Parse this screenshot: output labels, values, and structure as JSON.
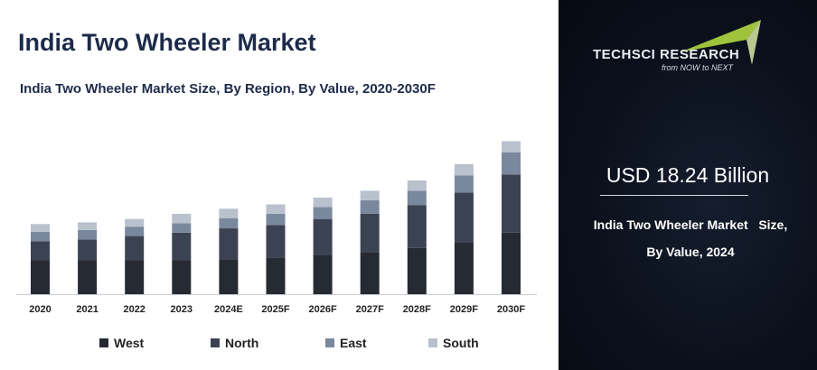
{
  "title": "India Two Wheeler Market",
  "subtitle": "India Two Wheeler Market Size, By Region, By Value, 2020-2030F",
  "chart_data": {
    "type": "bar",
    "stacked": true,
    "title": "India Two Wheeler Market Size, By Region, By Value, 2020-2030F",
    "xlabel": "",
    "ylabel": "",
    "categories": [
      "2020",
      "2021",
      "2022",
      "2023",
      "2024E",
      "2025F",
      "2026F",
      "2027F",
      "2028F",
      "2029F",
      "2030F"
    ],
    "series": [
      {
        "name": "West",
        "color": "#262a33",
        "values": [
          40,
          40,
          40,
          40,
          41,
          43,
          46,
          49,
          54,
          61,
          72
        ]
      },
      {
        "name": "North",
        "color": "#3b4353",
        "values": [
          22,
          24,
          28,
          32,
          36,
          38,
          42,
          45,
          50,
          58,
          68
        ]
      },
      {
        "name": "East",
        "color": "#7a889e",
        "values": [
          11,
          11,
          11,
          11,
          12,
          13,
          14,
          16,
          17,
          20,
          26
        ]
      },
      {
        "name": "South",
        "color": "#b9c1cd",
        "values": [
          9,
          9,
          9,
          11,
          11,
          11,
          11,
          11,
          12,
          13,
          13
        ]
      }
    ],
    "ylim": [
      0,
      190
    ],
    "grid": false,
    "legend": "bottom"
  },
  "legend": [
    "West",
    "North",
    "East",
    "South"
  ],
  "brand": {
    "name": "TECHSCI RESEARCH",
    "tagline": "from NOW to NEXT",
    "accent": "#9fc33b"
  },
  "kpi": {
    "value": "USD 18.24 Billion",
    "label_line1": "India Two Wheeler Market   Size,",
    "label_line2": "By Value, 2024"
  }
}
